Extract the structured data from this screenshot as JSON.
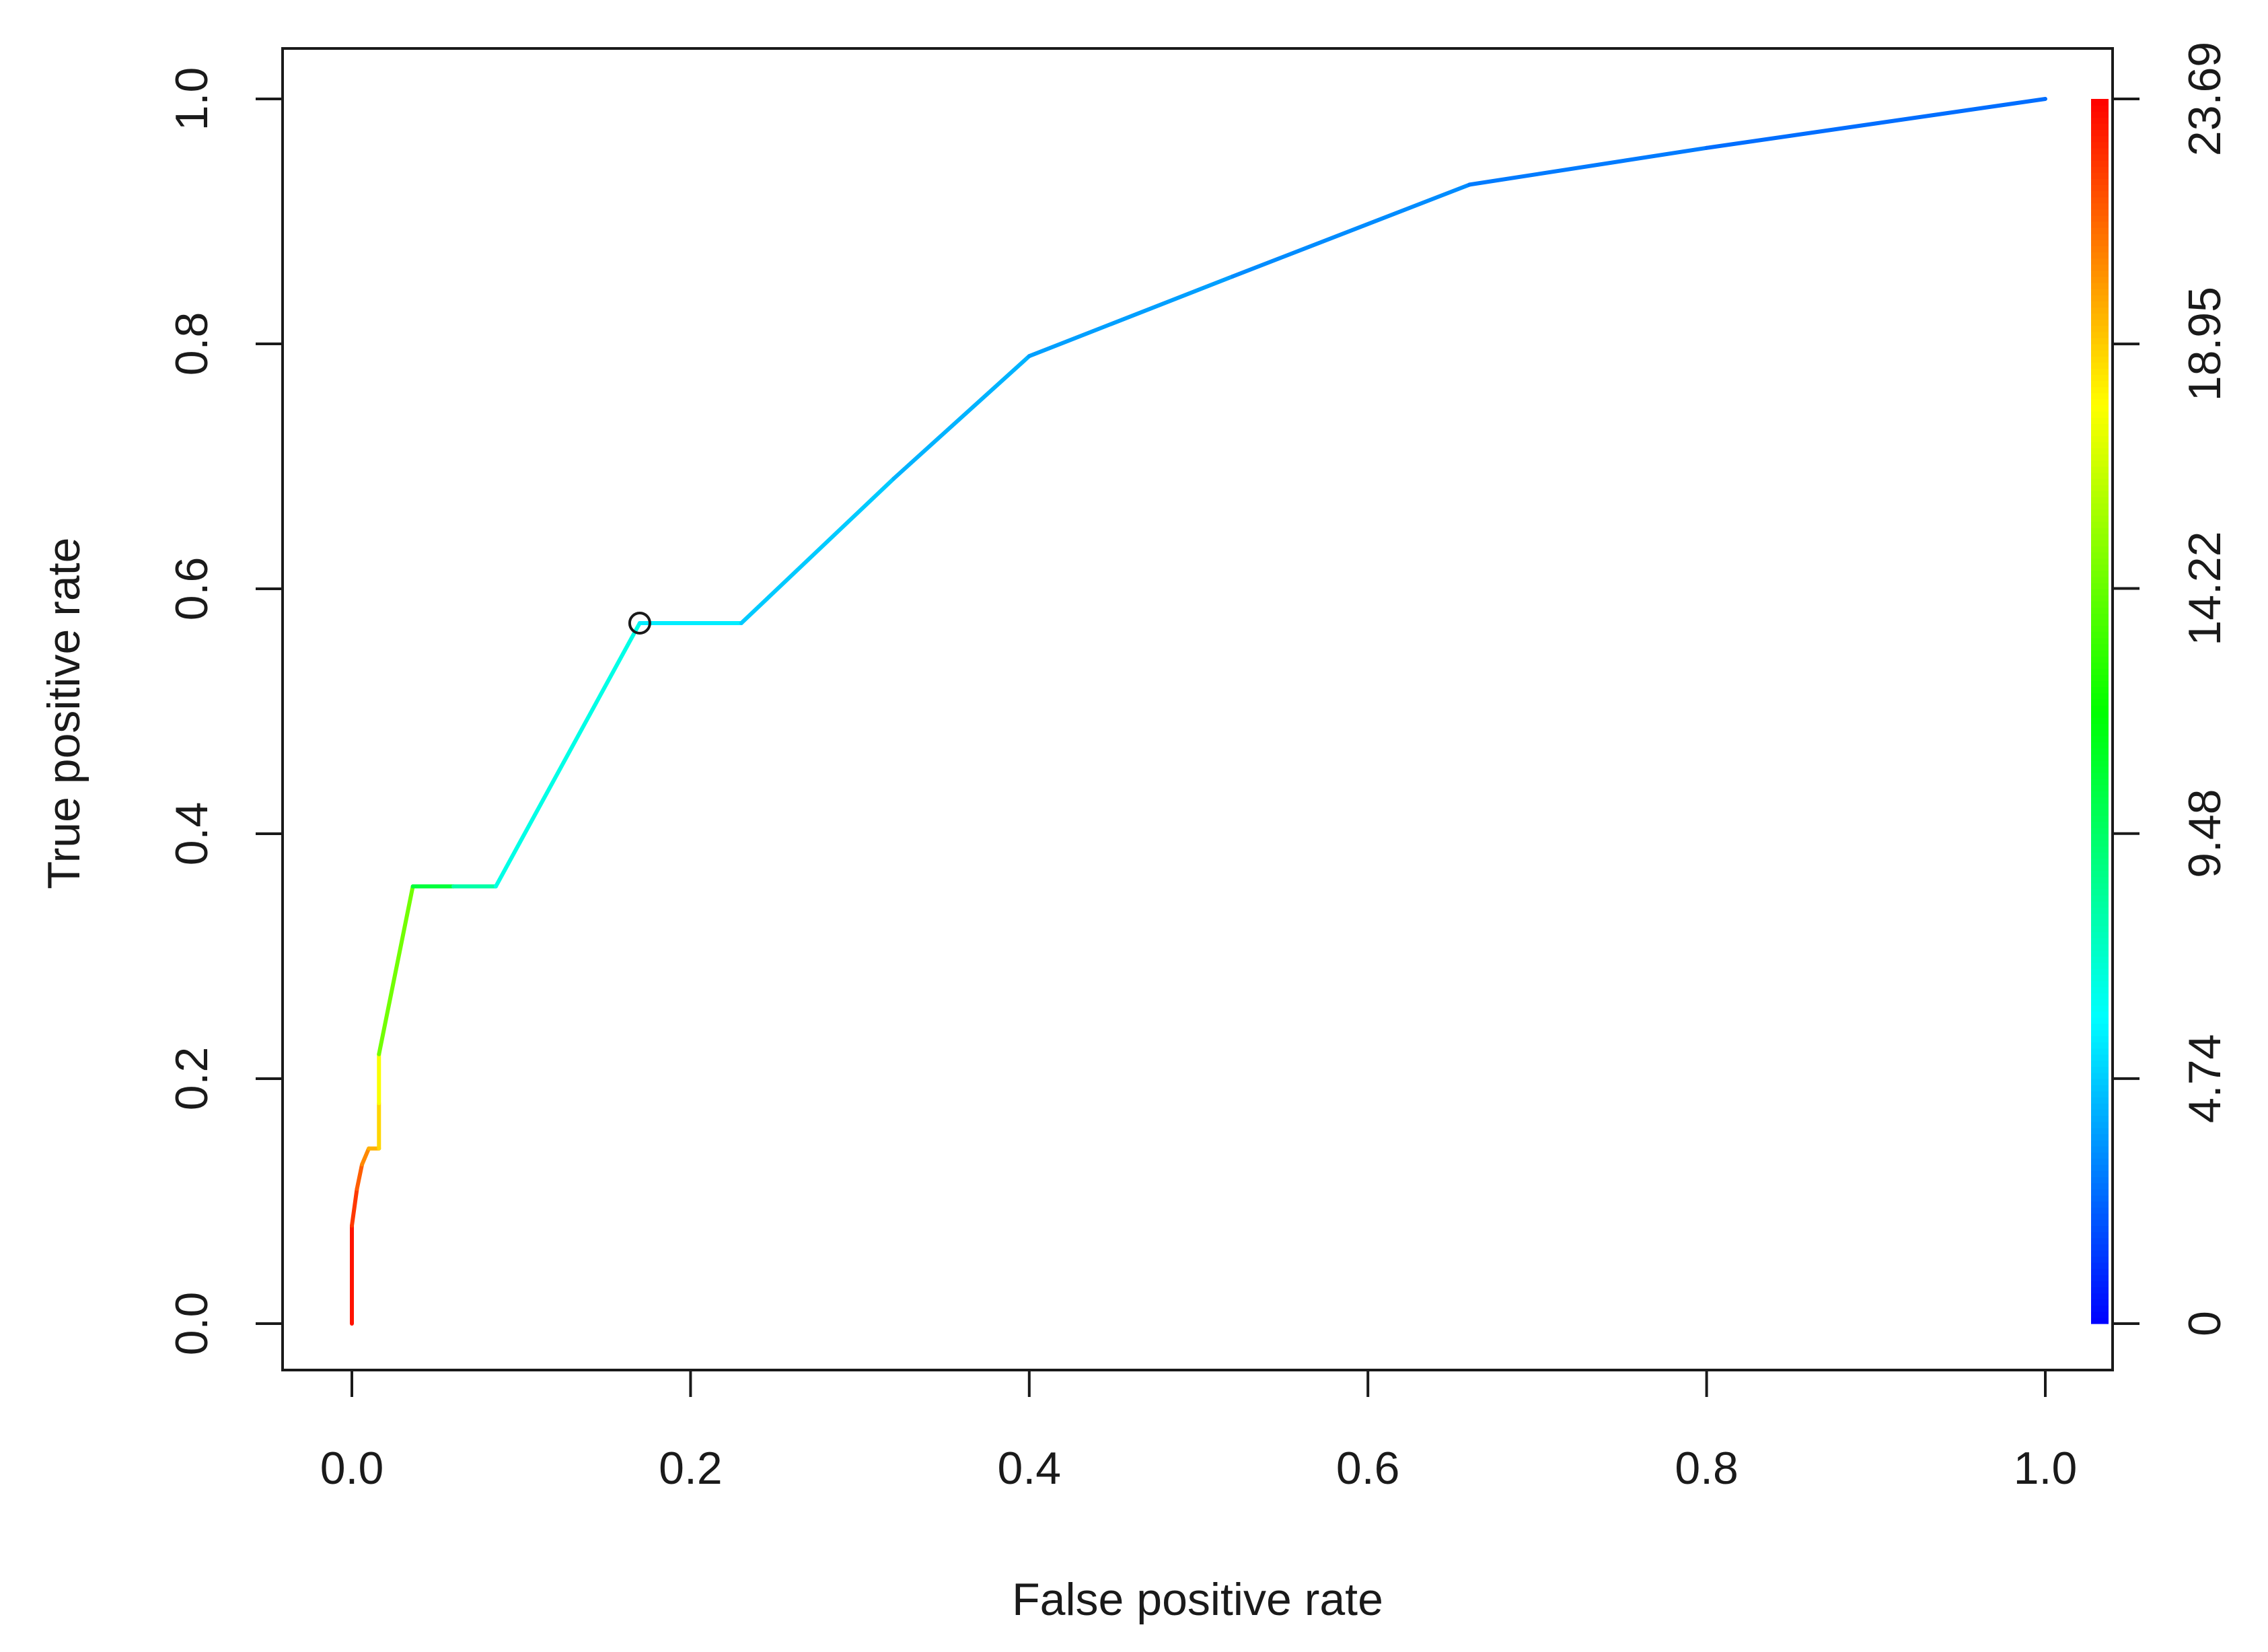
{
  "chart_data": {
    "type": "line",
    "title": "",
    "xlabel": "False positive rate",
    "ylabel": "True positive rate",
    "xlim": [
      0,
      1
    ],
    "ylim": [
      0,
      1
    ],
    "x_ticks": [
      "0.0",
      "0.2",
      "0.4",
      "0.6",
      "0.8",
      "1.0"
    ],
    "y_ticks": [
      "0.0",
      "0.2",
      "0.4",
      "0.6",
      "0.8",
      "1.0"
    ],
    "grid": false,
    "legend": "none",
    "series": [
      {
        "x": [
          0.0,
          0.0,
          0.003,
          0.006,
          0.01,
          0.016,
          0.016,
          0.016,
          0.036,
          0.06,
          0.085,
          0.17,
          0.23,
          0.32,
          0.4,
          0.52,
          0.66,
          0.8,
          1.0
        ],
        "y": [
          0.0,
          0.08,
          0.11,
          0.13,
          0.143,
          0.143,
          0.18,
          0.22,
          0.357,
          0.357,
          0.357,
          0.572,
          0.572,
          0.69,
          0.79,
          0.855,
          0.93,
          0.96,
          1.0
        ],
        "threshold": [
          23.69,
          22.8,
          22.0,
          21.0,
          20.0,
          19.2,
          18.3,
          17.0,
          12.0,
          9.0,
          7.0,
          6.0,
          5.0,
          4.4,
          3.9,
          3.5,
          3.0,
          2.7,
          2.4
        ]
      }
    ],
    "marker": {
      "x": 0.17,
      "y": 0.572,
      "shape": "open-circle"
    },
    "colorbar": {
      "position": "right",
      "range": [
        0,
        23.69
      ],
      "tick_labels": [
        "0",
        "4.74",
        "9.48",
        "14.22",
        "18.95",
        "23.69"
      ],
      "tick_values": [
        0,
        4.74,
        9.48,
        14.22,
        18.95,
        23.69
      ],
      "colormap": [
        "#0000ff",
        "#00ffff",
        "#00ff00",
        "#ffff00",
        "#ff0000"
      ]
    }
  }
}
